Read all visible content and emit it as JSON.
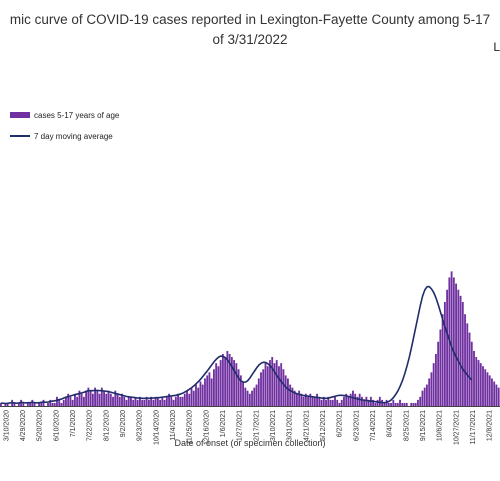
{
  "title_line1": "mic curve of COVID-19 cases reported in Lexington-Fayette County among 5-17",
  "title_line2": "of 3/31/2022",
  "corner_text": "L",
  "colors": {
    "bar": "#7030a0",
    "line": "#1f2d6b",
    "axis": "#444444"
  },
  "chart_data": {
    "type": "bar",
    "xlabel": "Date of onset (or specimen collection)",
    "ylabel": "",
    "legend": {
      "placement": "top-left",
      "entries": [
        {
          "label": "cases 5-17 years of age",
          "kind": "bar"
        },
        {
          "label": "7 day moving average",
          "kind": "line"
        }
      ]
    },
    "series": [
      {
        "name": "cases 5-17 years of age",
        "kind": "bar",
        "values": [
          1,
          0,
          1,
          1,
          0,
          2,
          1,
          0,
          1,
          2,
          1,
          0,
          1,
          1,
          2,
          1,
          0,
          1,
          1,
          2,
          0,
          1,
          2,
          1,
          1,
          3,
          2,
          1,
          2,
          3,
          4,
          3,
          2,
          4,
          3,
          5,
          4,
          3,
          5,
          6,
          5,
          4,
          6,
          5,
          4,
          6,
          5,
          4,
          5,
          4,
          3,
          5,
          4,
          3,
          4,
          3,
          2,
          3,
          3,
          2,
          3,
          2,
          3,
          2,
          2,
          3,
          2,
          3,
          2,
          3,
          3,
          2,
          3,
          2,
          3,
          4,
          3,
          2,
          3,
          4,
          3,
          3,
          4,
          5,
          4,
          6,
          5,
          7,
          6,
          8,
          7,
          9,
          10,
          11,
          9,
          12,
          14,
          13,
          15,
          17,
          16,
          18,
          17,
          16,
          15,
          14,
          12,
          10,
          8,
          6,
          5,
          4,
          5,
          6,
          7,
          9,
          11,
          12,
          14,
          13,
          15,
          16,
          14,
          15,
          13,
          14,
          12,
          10,
          9,
          7,
          6,
          5,
          4,
          5,
          4,
          3,
          4,
          3,
          4,
          3,
          3,
          4,
          3,
          2,
          3,
          2,
          3,
          2,
          2,
          3,
          2,
          1,
          2,
          3,
          4,
          3,
          4,
          5,
          4,
          3,
          4,
          3,
          2,
          3,
          2,
          3,
          2,
          1,
          2,
          3,
          2,
          1,
          2,
          1,
          1,
          2,
          1,
          1,
          2,
          1,
          1,
          1,
          0,
          1,
          1,
          1,
          2,
          3,
          5,
          6,
          7,
          9,
          11,
          14,
          17,
          21,
          25,
          30,
          34,
          38,
          42,
          44,
          42,
          40,
          38,
          36,
          34,
          30,
          27,
          24,
          21,
          18,
          16,
          15,
          14,
          13,
          12,
          11,
          10,
          9,
          8,
          7,
          6
        ]
      },
      {
        "name": "7 day moving average",
        "kind": "line",
        "values": [
          1,
          0.9,
          0.8,
          0.9,
          1,
          1.1,
          1,
          0.9,
          1,
          1.2,
          1.1,
          1,
          1.1,
          1.1,
          1.2,
          1.1,
          1,
          1.1,
          1.2,
          1.3,
          1.2,
          1.3,
          1.5,
          1.6,
          1.7,
          1.9,
          2.1,
          2.3,
          2.6,
          2.9,
          3.1,
          3.3,
          3.5,
          3.7,
          3.9,
          4.1,
          4.3,
          4.5,
          4.8,
          5,
          5,
          5,
          5.1,
          5.1,
          5,
          5,
          4.9,
          4.8,
          4.7,
          4.5,
          4.3,
          4.1,
          3.9,
          3.7,
          3.5,
          3.3,
          3.1,
          3,
          2.9,
          2.8,
          2.7,
          2.6,
          2.6,
          2.5,
          2.5,
          2.5,
          2.5,
          2.6,
          2.6,
          2.7,
          2.7,
          2.8,
          2.9,
          3,
          3.1,
          3.2,
          3.3,
          3.4,
          3.5,
          3.7,
          3.9,
          4.2,
          4.6,
          5,
          5.5,
          6,
          6.6,
          7.3,
          8,
          8.8,
          9.7,
          10.6,
          11.5,
          12.5,
          13.5,
          14.5,
          15.3,
          16,
          16.3,
          16.2,
          15.8,
          15,
          14,
          12.8,
          11.5,
          10.2,
          9,
          8.2,
          7.8,
          7.8,
          8.3,
          9.2,
          10.3,
          11.4,
          12.5,
          13.4,
          14,
          14.3,
          14.2,
          13.8,
          13.1,
          12.2,
          11.1,
          10,
          8.9,
          7.9,
          7,
          6.2,
          5.5,
          5,
          4.6,
          4.3,
          4,
          3.8,
          3.6,
          3.4,
          3.3,
          3.2,
          3.1,
          3,
          2.9,
          2.8,
          2.7,
          2.6,
          2.5,
          2.5,
          2.6,
          2.8,
          3,
          3.2,
          3.4,
          3.5,
          3.5,
          3.4,
          3.3,
          3.1,
          2.9,
          2.7,
          2.5,
          2.3,
          2.1,
          2,
          1.9,
          1.8,
          1.7,
          1.6,
          1.5,
          1.4,
          1.3,
          1.2,
          1.1,
          1.1,
          1.2,
          1.5,
          2,
          2.8,
          3.8,
          5,
          6.5,
          8.3,
          10.5,
          13,
          15.8,
          19,
          22.5,
          26,
          29.5,
          33,
          36,
          38,
          39,
          39,
          38.2,
          37,
          35.2,
          33,
          30.6,
          28.2,
          25.8,
          23.5,
          21.3,
          19.3,
          17.5,
          15.9,
          14.5,
          13.2,
          12,
          11,
          10,
          9.2,
          8.5
        ]
      }
    ],
    "x_tick_labels": [
      "3/10/2020",
      "4/29/2020",
      "5/20/2020",
      "6/10/2020",
      "7/1/2020",
      "7/22/2020",
      "8/12/2020",
      "9/2/2020",
      "9/23/2020",
      "10/14/2020",
      "11/4/2020",
      "11/25/2020",
      "12/16/2020",
      "1/6/2021",
      "1/27/2021",
      "2/17/2021",
      "3/10/2021",
      "3/31/2021",
      "4/21/2021",
      "5/12/2021",
      "6/2/2021",
      "6/23/2021",
      "7/14/2021",
      "8/4/2021",
      "8/25/2021",
      "9/15/2021",
      "10/6/2021",
      "10/27/2021",
      "11/17/2021",
      "12/8/2021"
    ],
    "y_range": [
      0,
      100
    ],
    "grid": false
  }
}
